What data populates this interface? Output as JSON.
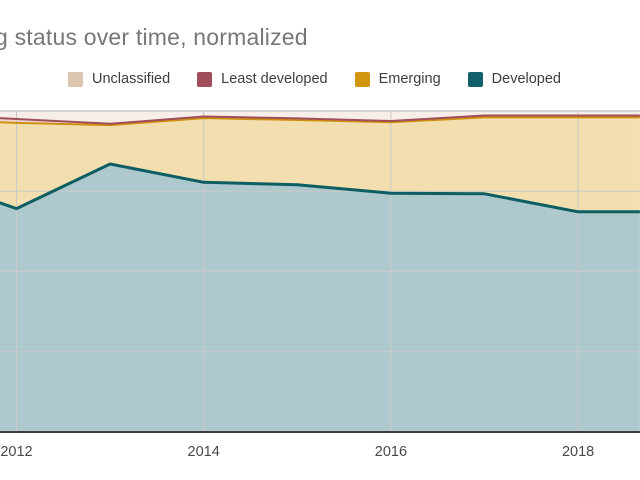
{
  "title": {
    "visible_text": "g status over time, normalized",
    "note": "title is clipped at the left edge of the screenshot",
    "color": "#777777"
  },
  "legend": {
    "text_color": "#3b3f42",
    "position": "top",
    "items": [
      {
        "label": "Unclassified",
        "color": "#dcc5ae"
      },
      {
        "label": "Least developed",
        "color": "#a04e59"
      },
      {
        "label": "Emerging",
        "color": "#d2950e"
      },
      {
        "label": "Developed",
        "color": "#11606a"
      }
    ]
  },
  "x_axis": {
    "tick_labels": [
      "2012",
      "2014",
      "2016",
      "2018"
    ],
    "text_color": "#45494d"
  },
  "chart_data": {
    "type": "area",
    "stacked": true,
    "normalized_percent": true,
    "title_visible": "g status over time, normalized",
    "xlabel": "",
    "ylabel": "",
    "y_range_percent": [
      0,
      100
    ],
    "x_years": [
      2012,
      2013,
      2014,
      2015,
      2016,
      2017,
      2018
    ],
    "x_tick_years": [
      2012,
      2014,
      2016,
      2018
    ],
    "clipped_at_edges": true,
    "series": [
      {
        "name": "Developed",
        "values_percent": [
          69.6,
          83.5,
          77.8,
          77.0,
          74.4,
          74.2,
          68.6
        ],
        "line_color": "#0c5e63",
        "line_width": 3,
        "fill_color": "#adc9cd"
      },
      {
        "name": "Emerging",
        "values_percent": [
          26.7,
          12.1,
          20.0,
          20.2,
          22.1,
          23.8,
          29.4
        ],
        "line_color": "#cf9010",
        "line_width": 2,
        "fill_color": "#f3deb0"
      },
      {
        "name": "Least developed",
        "values_percent": [
          1.2,
          0.4,
          0.5,
          0.5,
          0.4,
          0.6,
          0.6
        ],
        "line_color": "#a04e59",
        "line_width": 2,
        "fill_color": "#ecd4d4"
      },
      {
        "name": "Unclassified",
        "values_percent": [
          2.5,
          4.0,
          1.7,
          2.3,
          3.1,
          1.4,
          1.4
        ],
        "line_color": "",
        "line_width": 0,
        "fill_color": "#f7eee9"
      }
    ],
    "edge_samples": {
      "left": {
        "x_year": 2011.82,
        "values_percent": {
          "Developed": 71.4,
          "Emerging": 25.1,
          "Least developed": 1.3,
          "Unclassified": 2.2
        }
      },
      "right": {
        "x_year": 2018.66,
        "values_percent": {
          "Developed": 68.6,
          "Emerging": 29.4,
          "Least developed": 0.6,
          "Unclassified": 1.4
        }
      }
    },
    "gridlines": {
      "horizontal_percent": [
        25,
        50,
        75,
        100
      ],
      "vertical_at_ticks": true,
      "color": "#c9c9c9"
    },
    "baseline_color": "#3f3f3f",
    "legend_position": "top"
  }
}
